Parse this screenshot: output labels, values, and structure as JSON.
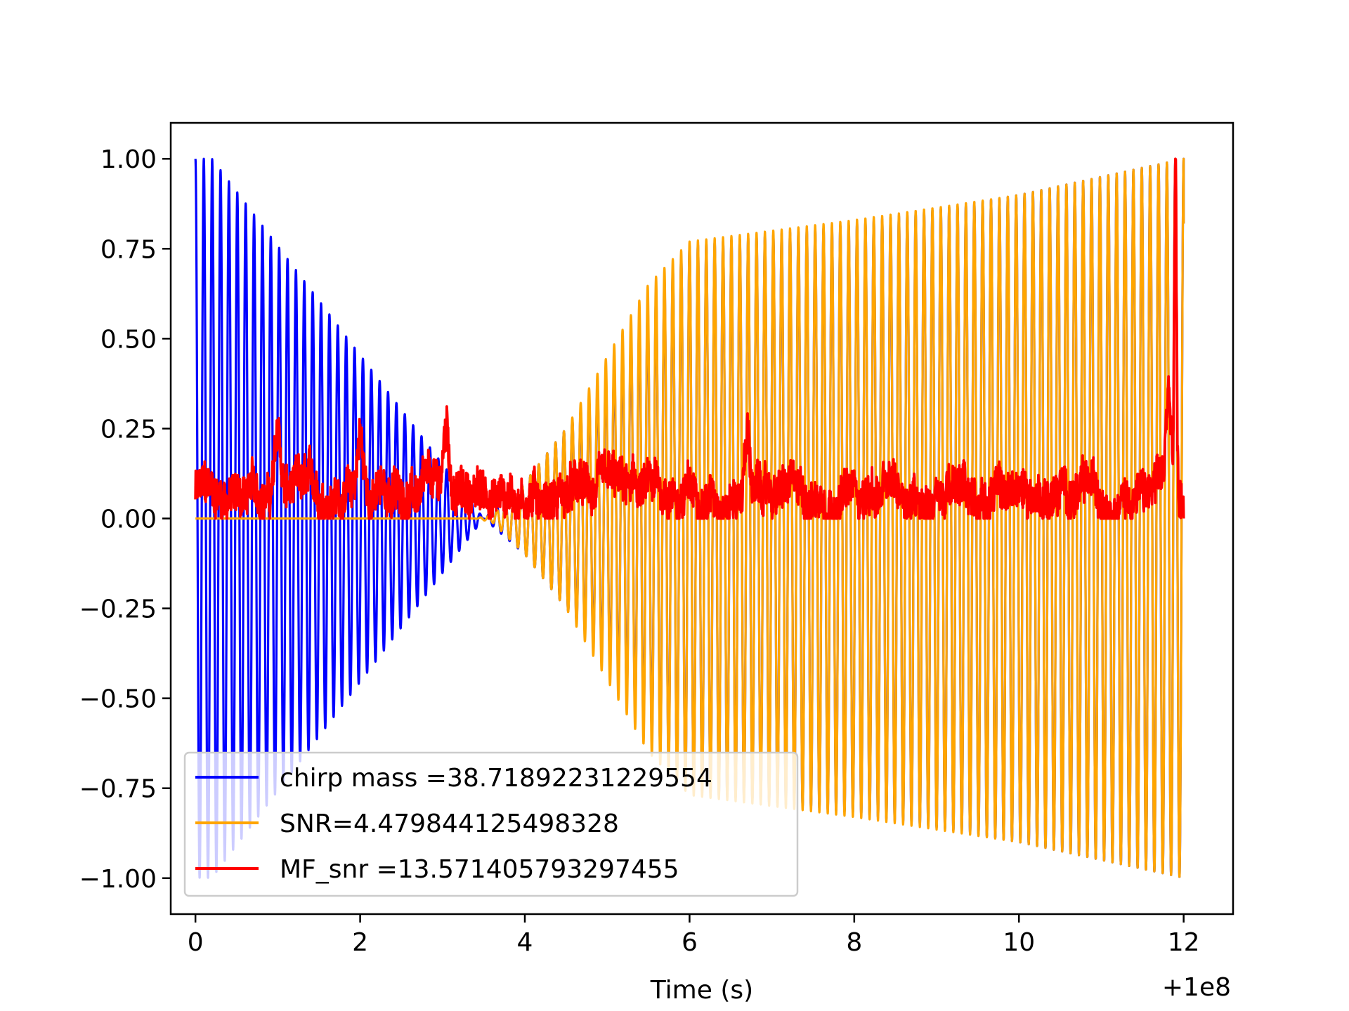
{
  "chart_data": {
    "type": "line",
    "title": "",
    "xlabel": "Time (s)",
    "ylabel": "",
    "x_offset_label": "+1e8",
    "xlim": [
      -0.3,
      12.6
    ],
    "ylim": [
      -1.1,
      1.1
    ],
    "xticks": [
      0,
      2,
      4,
      6,
      8,
      10,
      12
    ],
    "xtick_labels": [
      "0",
      "2",
      "4",
      "6",
      "8",
      "10",
      "12"
    ],
    "yticks": [
      1.0,
      0.75,
      0.5,
      0.25,
      0.0,
      -0.25,
      -0.5,
      -0.75,
      -1.0
    ],
    "ytick_labels": [
      "1.00",
      "0.75",
      "0.50",
      "0.25",
      "0.00",
      "−0.25",
      "−0.50",
      "−0.75",
      "−1.00"
    ],
    "grid": false,
    "legend_position": "lower-left",
    "series": [
      {
        "name": "chirp mass =38.71892231229554",
        "color": "#0000ff",
        "x_range": [
          0,
          12
        ],
        "cycles": 118,
        "envelope": {
          "x": [
            0,
            0.2,
            3.5,
            4.0,
            5.0,
            5.5,
            6.0,
            8.0,
            10.0,
            12.0
          ],
          "y": [
            1.0,
            1.0,
            0.0,
            0.1,
            0.4,
            0.6,
            0.76,
            0.82,
            0.9,
            1.0
          ]
        },
        "end_value": 0.82
      },
      {
        "name": "SNR=4.479844125498328",
        "color": "#ffa500",
        "x_range": [
          0,
          12
        ],
        "cycles": 118,
        "envelope": {
          "x": [
            0,
            3.4,
            3.6,
            4.0,
            4.5,
            5.0,
            5.5,
            6.0,
            8.0,
            10.0,
            12.0
          ],
          "y": [
            0.0,
            0.0,
            0.01,
            0.1,
            0.25,
            0.45,
            0.65,
            0.77,
            0.83,
            0.9,
            1.0
          ]
        },
        "end_value": 0.82
      },
      {
        "name": "MF_snr =13.571405793297455",
        "color": "#ff0000",
        "x_range": [
          0,
          12
        ],
        "baseline": 0.07,
        "typical_max": 0.2,
        "peaks": [
          {
            "x": 1.0,
            "y": 0.26
          },
          {
            "x": 2.0,
            "y": 0.27
          },
          {
            "x": 3.05,
            "y": 0.29
          },
          {
            "x": 6.7,
            "y": 0.28
          },
          {
            "x": 11.82,
            "y": 0.37
          },
          {
            "x": 11.9,
            "y": 1.0
          }
        ]
      }
    ]
  }
}
